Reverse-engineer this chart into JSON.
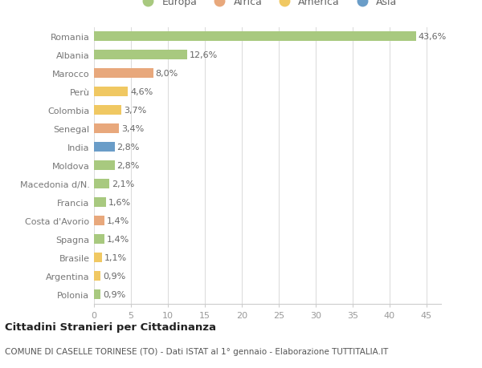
{
  "countries": [
    "Romania",
    "Albania",
    "Marocco",
    "Perù",
    "Colombia",
    "Senegal",
    "India",
    "Moldova",
    "Macedonia d/N.",
    "Francia",
    "Costa d'Avorio",
    "Spagna",
    "Brasile",
    "Argentina",
    "Polonia"
  ],
  "values": [
    43.6,
    12.6,
    8.0,
    4.6,
    3.7,
    3.4,
    2.8,
    2.8,
    2.1,
    1.6,
    1.4,
    1.4,
    1.1,
    0.9,
    0.9
  ],
  "labels": [
    "43,6%",
    "12,6%",
    "8,0%",
    "4,6%",
    "3,7%",
    "3,4%",
    "2,8%",
    "2,8%",
    "2,1%",
    "1,6%",
    "1,4%",
    "1,4%",
    "1,1%",
    "0,9%",
    "0,9%"
  ],
  "bar_colors": [
    "#a8c97f",
    "#a8c97f",
    "#e8a87c",
    "#f0c862",
    "#f0c862",
    "#e8a87c",
    "#6a9dc8",
    "#a8c97f",
    "#a8c97f",
    "#a8c97f",
    "#e8a87c",
    "#a8c97f",
    "#f0c862",
    "#f0c862",
    "#a8c97f"
  ],
  "continents": [
    "Europa",
    "Africa",
    "America",
    "Asia"
  ],
  "legend_colors": [
    "#a8c97f",
    "#e8a87c",
    "#f0c862",
    "#6a9dc8"
  ],
  "title": "Cittadini Stranieri per Cittadinanza",
  "subtitle": "COMUNE DI CASELLE TORINESE (TO) - Dati ISTAT al 1° gennaio - Elaborazione TUTTITALIA.IT",
  "xlim": [
    0,
    47
  ],
  "xticks": [
    0,
    5,
    10,
    15,
    20,
    25,
    30,
    35,
    40,
    45
  ],
  "background_color": "#ffffff",
  "grid_color": "#dddddd",
  "bar_height": 0.55,
  "label_fontsize": 8,
  "tick_fontsize": 8,
  "ylabel_color": "#777777",
  "xlabel_color": "#999999"
}
